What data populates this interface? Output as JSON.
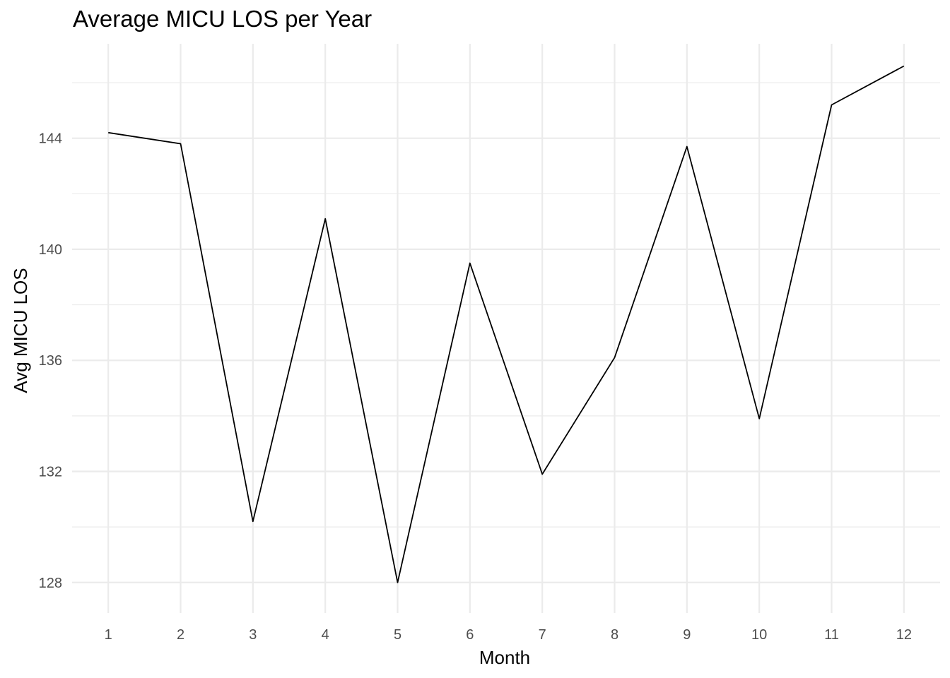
{
  "chart_data": {
    "type": "line",
    "title": "Average MICU LOS per Year",
    "xlabel": "Month",
    "ylabel": "Avg MICU LOS",
    "x": [
      1,
      2,
      3,
      4,
      5,
      6,
      7,
      8,
      9,
      10,
      11,
      12
    ],
    "x_tick_labels": [
      "1",
      "2",
      "3",
      "4",
      "5",
      "6",
      "7",
      "8",
      "9",
      "10",
      "11",
      "12"
    ],
    "series": [
      {
        "values": [
          144.2,
          143.8,
          130.2,
          141.1,
          128.0,
          139.5,
          131.9,
          136.1,
          143.7,
          133.9,
          145.2,
          146.6
        ]
      }
    ],
    "y_ticks": [
      128,
      132,
      136,
      140,
      144
    ],
    "y_tick_labels": [
      "128",
      "132",
      "136",
      "140",
      "144"
    ],
    "xlim": [
      0.5,
      12.5
    ],
    "ylim": [
      126.9,
      147.4
    ],
    "grid": true,
    "legend": "none",
    "line_color": "#000000",
    "grid_color": "#ebebeb"
  }
}
